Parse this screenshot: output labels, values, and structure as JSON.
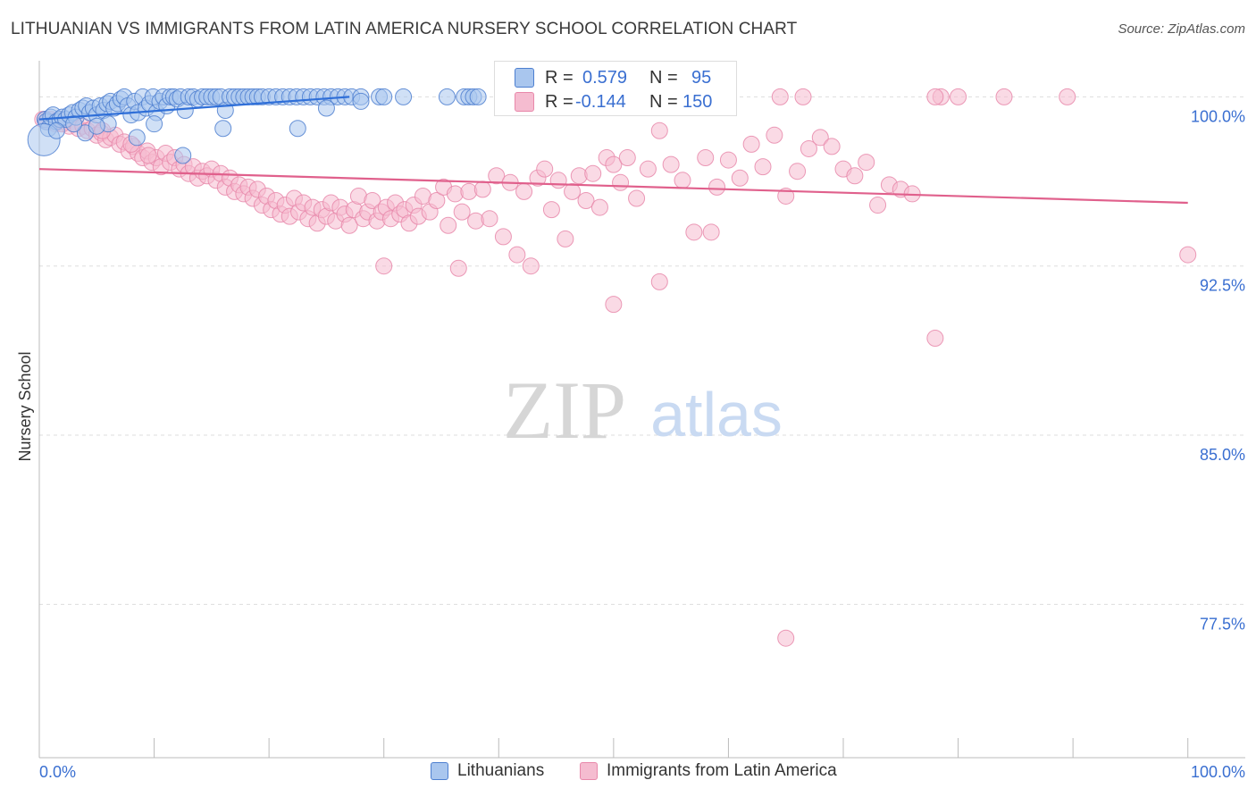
{
  "title": "LITHUANIAN VS IMMIGRANTS FROM LATIN AMERICA NURSERY SCHOOL CORRELATION CHART",
  "source": "Source: ZipAtlas.com",
  "watermark": {
    "zip": "ZIP",
    "atlas": "atlas"
  },
  "colors": {
    "blue_fill": "#a9c6ee",
    "blue_stroke": "#4d7fd0",
    "blue_line": "#2f6fd8",
    "pink_fill": "#f5bcd0",
    "pink_stroke": "#e888aa",
    "pink_line": "#e0608c",
    "axis_label": "#3a6fd1",
    "grid": "#dddddd"
  },
  "stats": {
    "lithuanians": {
      "r_label": "R =",
      "r_value": "0.579",
      "n_label": "N =",
      "n_value": "95"
    },
    "latin": {
      "r_label": "R =",
      "r_value": "-0.144",
      "n_label": "N =",
      "n_value": "150"
    }
  },
  "legend": {
    "lithuanians": "Lithuanians",
    "latin": "Immigrants from Latin America"
  },
  "chart_data": {
    "type": "scatter",
    "title": "LITHUANIAN VS IMMIGRANTS FROM LATIN AMERICA NURSERY SCHOOL CORRELATION CHART",
    "xlabel": "",
    "ylabel": "Nursery School",
    "xlim": [
      0,
      105
    ],
    "ylim": [
      70.7,
      101.6
    ],
    "x_tick_labels": [
      "0.0%",
      "100.0%"
    ],
    "y_ticks": [
      100.0,
      92.5,
      85.0,
      77.5
    ],
    "y_tick_labels": [
      "100.0%",
      "92.5%",
      "85.0%",
      "77.5%"
    ],
    "grid": true,
    "series": [
      {
        "name": "Lithuanians",
        "trend": {
          "x0": 0,
          "y0": 99.0,
          "x1": 27,
          "y1": 100.0
        },
        "points": [
          [
            0.5,
            99.0
          ],
          [
            0.6,
            98.9
          ],
          [
            0.8,
            98.6
          ],
          [
            1.0,
            99.1
          ],
          [
            1.2,
            99.2
          ],
          [
            1.5,
            98.9
          ],
          [
            1.8,
            99.0
          ],
          [
            2.0,
            99.1
          ],
          [
            2.3,
            99.0
          ],
          [
            2.6,
            99.2
          ],
          [
            2.9,
            99.3
          ],
          [
            3.2,
            99.1
          ],
          [
            3.5,
            99.4
          ],
          [
            3.8,
            99.5
          ],
          [
            4.1,
            99.6
          ],
          [
            4.4,
            99.3
          ],
          [
            4.7,
            99.5
          ],
          [
            5.0,
            99.2
          ],
          [
            5.3,
            99.6
          ],
          [
            5.6,
            99.4
          ],
          [
            5.9,
            99.7
          ],
          [
            6.2,
            99.8
          ],
          [
            6.5,
            99.5
          ],
          [
            6.8,
            99.7
          ],
          [
            7.1,
            99.9
          ],
          [
            7.4,
            100.0
          ],
          [
            7.7,
            99.6
          ],
          [
            8.0,
            99.2
          ],
          [
            8.3,
            99.8
          ],
          [
            8.6,
            99.3
          ],
          [
            9.0,
            100.0
          ],
          [
            9.3,
            99.5
          ],
          [
            9.6,
            99.7
          ],
          [
            9.9,
            100.0
          ],
          [
            10.2,
            99.3
          ],
          [
            10.5,
            99.8
          ],
          [
            10.8,
            100.0
          ],
          [
            11.1,
            99.6
          ],
          [
            11.4,
            100.0
          ],
          [
            11.7,
            100.0
          ],
          [
            12.0,
            99.9
          ],
          [
            12.3,
            100.0
          ],
          [
            12.7,
            99.4
          ],
          [
            13.0,
            100.0
          ],
          [
            13.4,
            100.0
          ],
          [
            13.8,
            99.9
          ],
          [
            14.2,
            100.0
          ],
          [
            14.6,
            100.0
          ],
          [
            15.0,
            100.0
          ],
          [
            15.4,
            100.0
          ],
          [
            15.8,
            100.0
          ],
          [
            16.2,
            99.4
          ],
          [
            16.6,
            100.0
          ],
          [
            17.0,
            100.0
          ],
          [
            17.4,
            100.0
          ],
          [
            17.8,
            100.0
          ],
          [
            18.2,
            100.0
          ],
          [
            18.6,
            100.0
          ],
          [
            19.0,
            100.0
          ],
          [
            19.4,
            100.0
          ],
          [
            20.0,
            100.0
          ],
          [
            20.6,
            100.0
          ],
          [
            21.2,
            100.0
          ],
          [
            21.8,
            100.0
          ],
          [
            22.4,
            100.0
          ],
          [
            23.0,
            100.0
          ],
          [
            23.6,
            100.0
          ],
          [
            24.2,
            100.0
          ],
          [
            24.8,
            100.0
          ],
          [
            25.4,
            100.0
          ],
          [
            26.0,
            100.0
          ],
          [
            26.6,
            100.0
          ],
          [
            27.2,
            100.0
          ],
          [
            28.0,
            100.0
          ],
          [
            29.6,
            100.0
          ],
          [
            30.0,
            100.0
          ],
          [
            31.7,
            100.0
          ],
          [
            35.5,
            100.0
          ],
          [
            37.0,
            100.0
          ],
          [
            37.4,
            100.0
          ],
          [
            37.8,
            100.0
          ],
          [
            38.2,
            100.0
          ],
          [
            0.4,
            98.1
          ],
          [
            4.0,
            98.4
          ],
          [
            12.5,
            97.4
          ],
          [
            16.0,
            98.6
          ],
          [
            22.5,
            98.6
          ],
          [
            25.0,
            99.5
          ],
          [
            28.0,
            99.8
          ],
          [
            3.0,
            98.8
          ],
          [
            6.0,
            98.8
          ],
          [
            8.5,
            98.2
          ],
          [
            10.0,
            98.8
          ],
          [
            5.0,
            98.7
          ],
          [
            1.5,
            98.5
          ]
        ],
        "sizes": {
          "0.4,98.1": 18
        }
      },
      {
        "name": "Immigrants from Latin America",
        "trend": {
          "x0": 0,
          "y0": 96.8,
          "x1": 100,
          "y1": 95.3
        },
        "points": [
          [
            0.3,
            99.0
          ],
          [
            0.7,
            98.9
          ],
          [
            1.0,
            99.0
          ],
          [
            1.4,
            98.8
          ],
          [
            1.8,
            99.0
          ],
          [
            2.2,
            98.9
          ],
          [
            2.6,
            98.7
          ],
          [
            3.0,
            98.8
          ],
          [
            3.4,
            98.6
          ],
          [
            3.8,
            98.7
          ],
          [
            4.2,
            98.5
          ],
          [
            4.6,
            98.6
          ],
          [
            5.0,
            98.3
          ],
          [
            5.4,
            98.4
          ],
          [
            5.8,
            98.1
          ],
          [
            6.2,
            98.2
          ],
          [
            6.6,
            98.3
          ],
          [
            7.0,
            97.9
          ],
          [
            7.4,
            98.0
          ],
          [
            7.8,
            97.6
          ],
          [
            8.2,
            97.8
          ],
          [
            8.6,
            97.5
          ],
          [
            9.0,
            97.3
          ],
          [
            9.4,
            97.6
          ],
          [
            9.8,
            97.1
          ],
          [
            10.2,
            97.3
          ],
          [
            10.6,
            96.9
          ],
          [
            11.0,
            97.5
          ],
          [
            11.4,
            97.1
          ],
          [
            11.8,
            97.3
          ],
          [
            12.2,
            96.8
          ],
          [
            12.6,
            97.0
          ],
          [
            13.0,
            96.6
          ],
          [
            13.4,
            96.9
          ],
          [
            13.8,
            96.4
          ],
          [
            14.2,
            96.7
          ],
          [
            14.6,
            96.5
          ],
          [
            15.0,
            96.8
          ],
          [
            15.4,
            96.3
          ],
          [
            15.8,
            96.6
          ],
          [
            16.2,
            96.0
          ],
          [
            16.6,
            96.4
          ],
          [
            17.0,
            95.8
          ],
          [
            17.4,
            96.1
          ],
          [
            17.8,
            95.7
          ],
          [
            18.2,
            96.0
          ],
          [
            18.6,
            95.5
          ],
          [
            19.0,
            95.9
          ],
          [
            19.4,
            95.2
          ],
          [
            19.8,
            95.6
          ],
          [
            20.2,
            95.0
          ],
          [
            20.6,
            95.4
          ],
          [
            21.0,
            94.8
          ],
          [
            21.4,
            95.2
          ],
          [
            21.8,
            94.7
          ],
          [
            22.2,
            95.5
          ],
          [
            22.6,
            94.9
          ],
          [
            23.0,
            95.3
          ],
          [
            23.4,
            94.6
          ],
          [
            23.8,
            95.1
          ],
          [
            24.2,
            94.4
          ],
          [
            24.6,
            95.0
          ],
          [
            25.0,
            94.7
          ],
          [
            25.4,
            95.3
          ],
          [
            25.8,
            94.5
          ],
          [
            26.2,
            95.1
          ],
          [
            26.6,
            94.8
          ],
          [
            27.0,
            94.3
          ],
          [
            27.4,
            95.0
          ],
          [
            27.8,
            95.6
          ],
          [
            28.2,
            94.6
          ],
          [
            28.6,
            94.9
          ],
          [
            29.0,
            95.4
          ],
          [
            29.4,
            94.5
          ],
          [
            29.8,
            94.9
          ],
          [
            30.2,
            95.1
          ],
          [
            30.6,
            94.6
          ],
          [
            31.0,
            95.3
          ],
          [
            31.4,
            94.8
          ],
          [
            31.8,
            95.0
          ],
          [
            32.2,
            94.4
          ],
          [
            32.6,
            95.2
          ],
          [
            33.0,
            94.7
          ],
          [
            33.4,
            95.6
          ],
          [
            34.0,
            94.9
          ],
          [
            34.6,
            95.4
          ],
          [
            35.2,
            96.0
          ],
          [
            35.6,
            94.3
          ],
          [
            36.2,
            95.7
          ],
          [
            36.8,
            94.9
          ],
          [
            37.4,
            95.8
          ],
          [
            38.0,
            94.5
          ],
          [
            38.6,
            95.9
          ],
          [
            39.2,
            94.6
          ],
          [
            39.8,
            96.5
          ],
          [
            40.4,
            93.8
          ],
          [
            41.0,
            96.2
          ],
          [
            41.6,
            93.0
          ],
          [
            42.2,
            95.8
          ],
          [
            42.8,
            92.5
          ],
          [
            43.4,
            96.4
          ],
          [
            44.0,
            96.8
          ],
          [
            44.6,
            95.0
          ],
          [
            45.2,
            96.3
          ],
          [
            45.8,
            93.7
          ],
          [
            46.4,
            95.8
          ],
          [
            47.0,
            96.5
          ],
          [
            47.6,
            95.4
          ],
          [
            48.2,
            96.6
          ],
          [
            48.8,
            95.1
          ],
          [
            49.4,
            97.3
          ],
          [
            50.0,
            97.0
          ],
          [
            50.6,
            96.2
          ],
          [
            51.2,
            97.3
          ],
          [
            52.0,
            95.5
          ],
          [
            53.0,
            96.8
          ],
          [
            54.0,
            91.8
          ],
          [
            55.0,
            97.0
          ],
          [
            56.0,
            96.3
          ],
          [
            57.0,
            94.0
          ],
          [
            58.0,
            97.3
          ],
          [
            59.0,
            96.0
          ],
          [
            60.0,
            97.2
          ],
          [
            61.0,
            96.4
          ],
          [
            62.0,
            97.9
          ],
          [
            63.0,
            96.9
          ],
          [
            64.0,
            98.3
          ],
          [
            65.0,
            95.6
          ],
          [
            66.0,
            96.7
          ],
          [
            67.0,
            97.7
          ],
          [
            68.0,
            98.2
          ],
          [
            69.0,
            97.8
          ],
          [
            70.0,
            96.8
          ],
          [
            71.0,
            96.5
          ],
          [
            72.0,
            97.1
          ],
          [
            73.0,
            95.2
          ],
          [
            74.0,
            96.1
          ],
          [
            75.0,
            95.9
          ],
          [
            76.0,
            95.7
          ],
          [
            30.0,
            92.5
          ],
          [
            36.5,
            92.4
          ],
          [
            50.0,
            90.8
          ],
          [
            54.0,
            98.5
          ],
          [
            58.5,
            94.0
          ],
          [
            64.5,
            100.0
          ],
          [
            66.5,
            100.0
          ],
          [
            78.5,
            100.0
          ],
          [
            78.0,
            100.0
          ],
          [
            80.0,
            100.0
          ],
          [
            84.0,
            100.0
          ],
          [
            89.5,
            100.0
          ],
          [
            78.0,
            89.3
          ],
          [
            65.0,
            76.0
          ],
          [
            100.0,
            93.0
          ],
          [
            0.5,
            99.0
          ],
          [
            1.2,
            98.9
          ],
          [
            2.0,
            98.8
          ],
          [
            5.5,
            98.5
          ],
          [
            8.0,
            97.9
          ],
          [
            9.5,
            97.4
          ]
        ]
      }
    ]
  }
}
